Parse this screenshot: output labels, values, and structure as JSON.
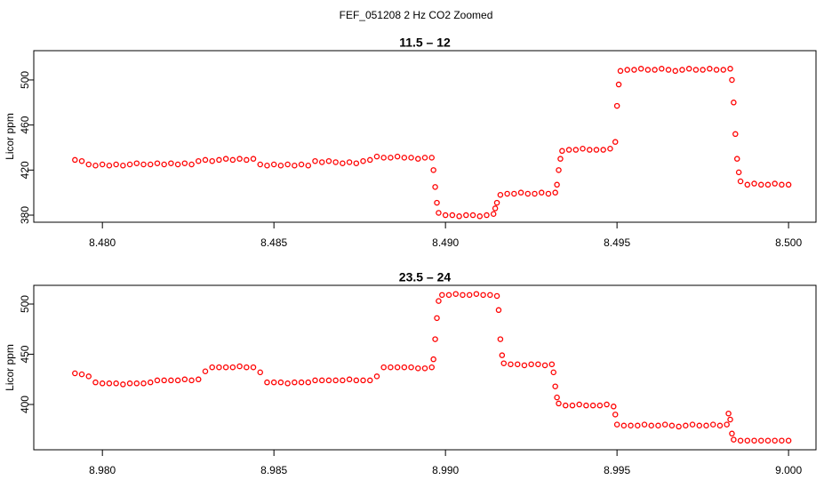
{
  "title": "FEF_051208  2 Hz CO2 Zoomed",
  "chart_data": [
    {
      "type": "scatter",
      "title": "11.5 – 12",
      "y_label": "Licor ppm",
      "color": "#ff0000",
      "grid": false,
      "xlim": [
        8.478,
        8.5008
      ],
      "ylim": [
        373.7,
        526
      ],
      "xticks": [
        {
          "value": 8.48,
          "label": "8.480"
        },
        {
          "value": 8.485,
          "label": "8.485"
        },
        {
          "value": 8.49,
          "label": "8.490"
        },
        {
          "value": 8.495,
          "label": "8.495"
        },
        {
          "value": 8.5,
          "label": "8.500"
        }
      ],
      "yticks": [
        380,
        420,
        460,
        500
      ],
      "x": [
        8.4792,
        8.4794,
        8.4796,
        8.4798,
        8.48,
        8.4802,
        8.4804,
        8.4806,
        8.4808,
        8.481,
        8.4812,
        8.4814,
        8.4816,
        8.4818,
        8.482,
        8.4822,
        8.4824,
        8.4826,
        8.4828,
        8.483,
        8.4832,
        8.4834,
        8.4836,
        8.4838,
        8.484,
        8.4842,
        8.4844,
        8.4846,
        8.4848,
        8.485,
        8.4852,
        8.4854,
        8.4856,
        8.4858,
        8.486,
        8.4862,
        8.4864,
        8.4866,
        8.4868,
        8.487,
        8.4872,
        8.4874,
        8.4876,
        8.4878,
        8.488,
        8.4882,
        8.4884,
        8.4886,
        8.4888,
        8.489,
        8.4892,
        8.4894,
        8.4896,
        8.48965,
        8.4897,
        8.48975,
        8.4898,
        8.49,
        8.4902,
        8.4904,
        8.4906,
        8.4908,
        8.491,
        8.4912,
        8.4914,
        8.49145,
        8.4915,
        8.4916,
        8.4918,
        8.492,
        8.4922,
        8.4924,
        8.4926,
        8.4928,
        8.493,
        8.4932,
        8.49325,
        8.4933,
        8.49335,
        8.4934,
        8.4936,
        8.4938,
        8.494,
        8.4942,
        8.4944,
        8.4946,
        8.4948,
        8.49495,
        8.495,
        8.49505,
        8.4951,
        8.4953,
        8.4955,
        8.4957,
        8.4959,
        8.4961,
        8.4963,
        8.4965,
        8.4967,
        8.4969,
        8.4971,
        8.4973,
        8.4975,
        8.4977,
        8.4979,
        8.4981,
        8.4983,
        8.49835,
        8.4984,
        8.49845,
        8.4985,
        8.49855,
        8.4986,
        8.4988,
        8.499,
        8.4992,
        8.4994,
        8.4996,
        8.4998,
        8.5
      ],
      "values": [
        429,
        428,
        425,
        424,
        425,
        424,
        425,
        424,
        425,
        426,
        425,
        425,
        426,
        425,
        426,
        425,
        426,
        425,
        428,
        429,
        428,
        429,
        430,
        429,
        430,
        429,
        430,
        425,
        424,
        425,
        424,
        425,
        424,
        425,
        424,
        428,
        427,
        428,
        427,
        426,
        427,
        426,
        428,
        429,
        432,
        431,
        431,
        432,
        431,
        431,
        430,
        431,
        431,
        420,
        405,
        391,
        382,
        380,
        380,
        379,
        380,
        380,
        379,
        380,
        381,
        386,
        391,
        398,
        399,
        399,
        400,
        399,
        399,
        400,
        399,
        400,
        407,
        420,
        430,
        437,
        438,
        438,
        439,
        438,
        438,
        438,
        439,
        445,
        477,
        496,
        508,
        509,
        509,
        510,
        509,
        509,
        510,
        509,
        508,
        509,
        510,
        509,
        509,
        510,
        509,
        509,
        510,
        500,
        480,
        452,
        430,
        418,
        410,
        407,
        408,
        407,
        407,
        408,
        407,
        407
      ]
    },
    {
      "type": "scatter",
      "title": "23.5 – 24",
      "y_label": "Licor ppm",
      "color": "#ff0000",
      "grid": false,
      "xlim": [
        8.978,
        9.0008
      ],
      "ylim": [
        354.9,
        518.6
      ],
      "xticks": [
        {
          "value": 8.98,
          "label": "8.980"
        },
        {
          "value": 8.985,
          "label": "8.985"
        },
        {
          "value": 8.99,
          "label": "8.990"
        },
        {
          "value": 8.995,
          "label": "8.995"
        },
        {
          "value": 9.0,
          "label": "9.000"
        }
      ],
      "yticks": [
        400,
        450,
        500
      ],
      "x": [
        8.9792,
        8.9794,
        8.9796,
        8.9798,
        8.98,
        8.9802,
        8.9804,
        8.9806,
        8.9808,
        8.981,
        8.9812,
        8.9814,
        8.9816,
        8.9818,
        8.982,
        8.9822,
        8.9824,
        8.9826,
        8.9828,
        8.983,
        8.9832,
        8.9834,
        8.9836,
        8.9838,
        8.984,
        8.9842,
        8.9844,
        8.9846,
        8.9848,
        8.985,
        8.9852,
        8.9854,
        8.9856,
        8.9858,
        8.986,
        8.9862,
        8.9864,
        8.9866,
        8.9868,
        8.987,
        8.9872,
        8.9874,
        8.9876,
        8.9878,
        8.988,
        8.9882,
        8.9884,
        8.9886,
        8.9888,
        8.989,
        8.9892,
        8.9894,
        8.9896,
        8.98965,
        8.9897,
        8.98975,
        8.9898,
        8.9899,
        8.9901,
        8.9903,
        8.9905,
        8.9907,
        8.9909,
        8.9911,
        8.9913,
        8.9915,
        8.99155,
        8.9916,
        8.99165,
        8.9917,
        8.9919,
        8.9921,
        8.9923,
        8.9925,
        8.9927,
        8.9929,
        8.9931,
        8.99315,
        8.9932,
        8.99325,
        8.9933,
        8.9935,
        8.9937,
        8.9939,
        8.9941,
        8.9943,
        8.9945,
        8.9947,
        8.9949,
        8.99495,
        8.995,
        8.9952,
        8.9954,
        8.9956,
        8.9958,
        8.996,
        8.9962,
        8.9964,
        8.9966,
        8.9968,
        8.997,
        8.9972,
        8.9974,
        8.9976,
        8.9978,
        8.998,
        8.9982,
        8.99825,
        8.9983,
        8.99835,
        8.9984,
        8.9986,
        8.9988,
        8.999,
        8.9992,
        8.9994,
        8.9996,
        8.9998,
        9.0
      ],
      "values": [
        431,
        430,
        428,
        422,
        421,
        421,
        421,
        420,
        421,
        421,
        421,
        422,
        424,
        424,
        424,
        424,
        425,
        424,
        425,
        433,
        437,
        437,
        437,
        437,
        438,
        437,
        437,
        432,
        422,
        422,
        422,
        421,
        422,
        422,
        422,
        424,
        424,
        424,
        424,
        424,
        425,
        424,
        424,
        424,
        428,
        437,
        437,
        437,
        437,
        437,
        436,
        436,
        437,
        445,
        465,
        486,
        503,
        509,
        509,
        510,
        509,
        509,
        510,
        509,
        509,
        508,
        494,
        465,
        449,
        441,
        440,
        440,
        439,
        440,
        440,
        439,
        440,
        432,
        418,
        407,
        401,
        399,
        399,
        400,
        399,
        399,
        399,
        400,
        398,
        390,
        380,
        379,
        379,
        379,
        380,
        379,
        379,
        380,
        379,
        378,
        379,
        380,
        379,
        379,
        380,
        379,
        380,
        391,
        385,
        371,
        365,
        364,
        364,
        364,
        364,
        364,
        364,
        364,
        364
      ]
    }
  ]
}
